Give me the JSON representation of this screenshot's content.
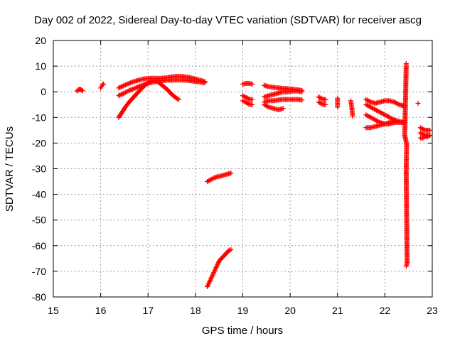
{
  "chart_data": {
    "type": "scatter",
    "title": "Day 002 of 2022, Sidereal Day-to-day VTEC variation (SDTVAR) for receiver ascg",
    "xlabel": "GPS time / hours",
    "ylabel": "SDTVAR / TECUs",
    "xlim": [
      15,
      23
    ],
    "ylim": [
      -80,
      20
    ],
    "xticks": [
      15,
      16,
      17,
      18,
      19,
      20,
      21,
      22,
      23
    ],
    "yticks": [
      -80,
      -70,
      -60,
      -50,
      -40,
      -30,
      -20,
      -10,
      0,
      10,
      20
    ],
    "grid": true,
    "marker": "plus",
    "color": "#ff0000",
    "series": [
      {
        "x": [
          15.5,
          15.52,
          15.54,
          15.56,
          15.58,
          15.6,
          15.62
        ],
        "y": [
          0.3,
          0.6,
          0.9,
          1.0,
          0.9,
          0.6,
          0.4
        ]
      },
      {
        "x": [
          16.0,
          16.02,
          16.04,
          16.06
        ],
        "y": [
          1.5,
          2.2,
          2.8,
          3.0
        ]
      },
      {
        "x": [
          16.38,
          16.45,
          16.52,
          16.6,
          16.7,
          16.8,
          16.9,
          17.0,
          17.1,
          17.2,
          17.3,
          17.4,
          17.5,
          17.6,
          17.65
        ],
        "y": [
          -10,
          -8,
          -6,
          -4,
          -2,
          0,
          2,
          3.5,
          4.5,
          4,
          2.5,
          1,
          -1,
          -2.5,
          -3
        ]
      },
      {
        "x": [
          16.38,
          16.5,
          16.6,
          16.7,
          16.8,
          16.9,
          17.0,
          17.1,
          17.2,
          17.3,
          17.4,
          17.5,
          17.6,
          17.7,
          17.8,
          17.9,
          18.0,
          18.1,
          18.2
        ],
        "y": [
          -1.5,
          -0.5,
          0.5,
          1.2,
          2,
          2.7,
          3.3,
          3.8,
          4.1,
          4.3,
          4.5,
          4.5,
          4.6,
          4.6,
          4.5,
          4.3,
          4,
          3.8,
          3.5
        ]
      },
      {
        "x": [
          16.38,
          16.5,
          16.6,
          16.7,
          16.8,
          16.9,
          17.0,
          17.1,
          17.2,
          17.3,
          17.4,
          17.5,
          17.6,
          17.7,
          17.8,
          17.9,
          18.0,
          18.1,
          18.2
        ],
        "y": [
          1.5,
          2.5,
          3.3,
          4,
          4.5,
          5,
          5.2,
          5.3,
          5.2,
          5.3,
          5.5,
          5.8,
          6,
          6,
          5.8,
          5.5,
          5,
          4.5,
          4
        ]
      },
      {
        "x": [
          18.25,
          18.3,
          18.35,
          18.4,
          18.45,
          18.5,
          18.55,
          18.6,
          18.65,
          18.7,
          18.75
        ],
        "y": [
          -35,
          -34.5,
          -34,
          -33.5,
          -33.2,
          -33,
          -32.8,
          -32.5,
          -32.2,
          -32,
          -31.7
        ]
      },
      {
        "x": [
          18.25,
          18.3,
          18.35,
          18.4,
          18.45,
          18.5,
          18.55,
          18.6,
          18.65,
          18.7,
          18.75
        ],
        "y": [
          -76,
          -74,
          -72,
          -70,
          -68,
          -66,
          -65,
          -64,
          -63,
          -62,
          -61.5
        ]
      },
      {
        "x": [
          19.0,
          19.05,
          19.1,
          19.15,
          19.2
        ],
        "y": [
          3,
          3.2,
          3.3,
          3.2,
          3.0
        ]
      },
      {
        "x": [
          19.0,
          19.05,
          19.1,
          19.15,
          19.2
        ],
        "y": [
          -1.5,
          -2,
          -2.5,
          -3,
          -3
        ]
      },
      {
        "x": [
          19.0,
          19.05,
          19.1,
          19.15,
          19.2
        ],
        "y": [
          -3.5,
          -4,
          -4.5,
          -5,
          -5
        ]
      },
      {
        "x": [
          19.45,
          19.55,
          19.65,
          19.75,
          19.85,
          19.95,
          20.05,
          20.15,
          20.25
        ],
        "y": [
          2.5,
          2,
          1.7,
          1.5,
          1.3,
          1.2,
          1.0,
          0.8,
          0.5
        ]
      },
      {
        "x": [
          19.45,
          19.55,
          19.65,
          19.75,
          19.85,
          19.95,
          20.05,
          20.15,
          20.25
        ],
        "y": [
          -2,
          -1.5,
          -1,
          -0.5,
          0,
          0,
          0.3,
          0.3,
          0
        ]
      },
      {
        "x": [
          19.45,
          19.55,
          19.65,
          19.75,
          19.85,
          19.95,
          20.05,
          20.15,
          20.25
        ],
        "y": [
          -4,
          -3.5,
          -3.5,
          -3.2,
          -3,
          -3,
          -3,
          -3,
          -3.2
        ]
      },
      {
        "x": [
          19.45,
          19.55,
          19.65,
          19.75,
          19.85
        ],
        "y": [
          -5,
          -6,
          -6.5,
          -7,
          -6.5
        ]
      },
      {
        "x": [
          20.6,
          20.65,
          20.7,
          20.75
        ],
        "y": [
          -2,
          -2.5,
          -3,
          -3
        ]
      },
      {
        "x": [
          20.6,
          20.65,
          20.7,
          20.75
        ],
        "y": [
          -4,
          -4.5,
          -5,
          -5
        ]
      },
      {
        "x": [
          21.0,
          21.0
        ],
        "y": [
          -2.5,
          -6
        ]
      },
      {
        "x": [
          21.28,
          21.3,
          21.32
        ],
        "y": [
          -3.5,
          -6,
          -9.5
        ]
      },
      {
        "x": [
          21.6,
          21.7,
          21.8,
          21.9,
          22.0,
          22.1,
          22.2,
          22.3,
          22.4
        ],
        "y": [
          -3,
          -4,
          -4.5,
          -4,
          -3.5,
          -3.5,
          -4,
          -5,
          -5.5
        ]
      },
      {
        "x": [
          21.6,
          21.7,
          21.8,
          21.9,
          22.0,
          22.1,
          22.2,
          22.3,
          22.4
        ],
        "y": [
          -5,
          -6,
          -7,
          -8,
          -9,
          -10,
          -11,
          -11.5,
          -12
        ]
      },
      {
        "x": [
          21.6,
          21.7,
          21.8,
          21.9,
          22.0,
          22.1,
          22.2,
          22.3,
          22.4
        ],
        "y": [
          -9,
          -10,
          -11,
          -12,
          -12.5,
          -12.5,
          -12,
          -12,
          -12
        ]
      },
      {
        "x": [
          21.6,
          21.7,
          21.8,
          21.9,
          22.0,
          22.1,
          22.2
        ],
        "y": [
          -14,
          -14,
          -13.5,
          -13,
          -12.5,
          -12,
          -11.5
        ]
      },
      {
        "x": [
          22.45,
          22.45,
          22.42,
          22.46,
          22.45,
          22.47,
          22.45
        ],
        "y": [
          11,
          10,
          -17,
          -20.5,
          -31,
          -67,
          -68
        ]
      },
      {
        "x": [
          22.7
        ],
        "y": [
          -4.5
        ]
      },
      {
        "x": [
          22.75,
          22.8,
          22.85,
          22.9,
          22.95
        ],
        "y": [
          -14,
          -14.5,
          -15,
          -15,
          -15
        ]
      },
      {
        "x": [
          22.75,
          22.8,
          22.85,
          22.9,
          22.95
        ],
        "y": [
          -16,
          -16.5,
          -17,
          -17,
          -17
        ]
      },
      {
        "x": [
          22.75,
          22.8,
          22.85,
          22.9,
          22.95
        ],
        "y": [
          -18,
          -18,
          -17.5,
          -17.5,
          -17
        ]
      }
    ]
  }
}
